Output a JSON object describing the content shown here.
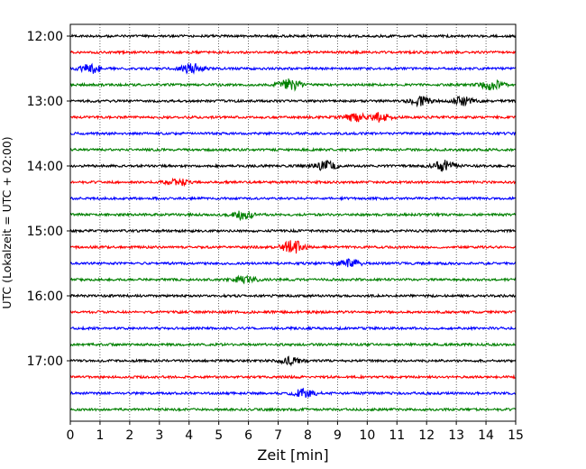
{
  "chart_data": {
    "type": "line",
    "xlabel": "Zeit  [min]",
    "ylabel": "UTC (Lokalzeit = UTC + 02:00)",
    "xlim": [
      0,
      15
    ],
    "x_ticks": [
      "0",
      "1",
      "2",
      "3",
      "4",
      "5",
      "6",
      "7",
      "8",
      "9",
      "10",
      "11",
      "12",
      "13",
      "14",
      "15"
    ],
    "y_ticks": [
      "12:00",
      "13:00",
      "14:00",
      "15:00",
      "16:00",
      "17:00"
    ],
    "trace_interval_minutes": 15,
    "traces_per_hour": 4,
    "trace_count": 24,
    "trace_color_cycle": [
      "#000000",
      "#ff0000",
      "#0000ff",
      "#008000"
    ],
    "grid": "vertical dotted",
    "bursts": [
      {
        "trace": 2,
        "x": 0.7,
        "amp": 1.6
      },
      {
        "trace": 2,
        "x": 4.1,
        "amp": 1.7
      },
      {
        "trace": 3,
        "x": 7.4,
        "amp": 2.0
      },
      {
        "trace": 3,
        "x": 14.2,
        "amp": 1.8
      },
      {
        "trace": 4,
        "x": 11.8,
        "amp": 1.6
      },
      {
        "trace": 4,
        "x": 13.2,
        "amp": 1.4
      },
      {
        "trace": 5,
        "x": 9.6,
        "amp": 1.5
      },
      {
        "trace": 5,
        "x": 10.4,
        "amp": 1.5
      },
      {
        "trace": 8,
        "x": 8.6,
        "amp": 1.6
      },
      {
        "trace": 8,
        "x": 12.6,
        "amp": 1.9
      },
      {
        "trace": 9,
        "x": 3.6,
        "amp": 1.2
      },
      {
        "trace": 11,
        "x": 5.8,
        "amp": 1.7
      },
      {
        "trace": 13,
        "x": 7.5,
        "amp": 2.3
      },
      {
        "trace": 14,
        "x": 9.4,
        "amp": 1.5
      },
      {
        "trace": 15,
        "x": 5.9,
        "amp": 1.3
      },
      {
        "trace": 20,
        "x": 7.4,
        "amp": 1.2
      },
      {
        "trace": 22,
        "x": 7.9,
        "amp": 1.6
      }
    ]
  }
}
